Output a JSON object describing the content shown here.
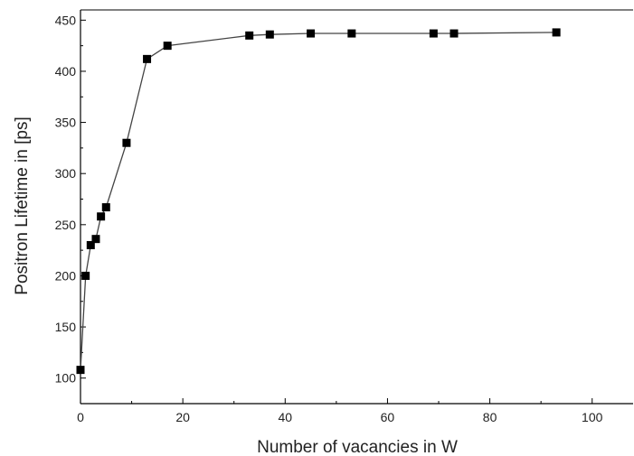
{
  "chart_data": {
    "type": "line",
    "title": "",
    "xlabel": "Number of vacancies in W",
    "ylabel": "Positron Lifetime in [ps]",
    "xlim": [
      0,
      108
    ],
    "ylim": [
      75,
      460
    ],
    "xticks": [
      0,
      20,
      40,
      60,
      80,
      100
    ],
    "yticks": [
      100,
      150,
      200,
      250,
      300,
      350,
      400,
      450
    ],
    "grid": false,
    "legend": "none",
    "series": [
      {
        "marker": "square",
        "color": "#000000",
        "x": [
          0,
          1,
          2,
          3,
          4,
          5,
          9,
          13,
          17,
          33,
          37,
          45,
          53,
          69,
          73,
          93
        ],
        "y": [
          108,
          200,
          230,
          236,
          258,
          267,
          330,
          412,
          425,
          435,
          436,
          437,
          437,
          437,
          437,
          438
        ]
      }
    ]
  }
}
